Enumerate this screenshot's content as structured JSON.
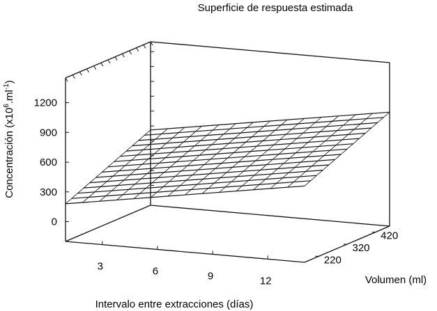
{
  "chart_data": {
    "type": "surface",
    "title": "Superficie de respuesta estimada",
    "xlabel": "Intervalo entre extracciones (días)",
    "ylabel": "Volumen (ml)",
    "zlabel": "Concentración (x10",
    "zlabel_exp1": "6",
    "zlabel_mid": ".ml",
    "zlabel_exp2": "-1",
    "zlabel_end": ")",
    "x_ticks": [
      "3",
      "6",
      "9",
      "12"
    ],
    "y_ticks": [
      "220",
      "320",
      "420"
    ],
    "z_ticks": [
      "0",
      "300",
      "600",
      "900",
      "1200"
    ],
    "xlim": [
      1,
      14
    ],
    "ylim": [
      170,
      470
    ],
    "zlim": [
      -200,
      1450
    ],
    "surface": {
      "x": [
        1,
        14
      ],
      "y": [
        170,
        470
      ],
      "z": [
        [
          180,
          560
        ],
        [
          570,
          950
        ]
      ]
    },
    "grid": false,
    "line_color": "#111111"
  }
}
